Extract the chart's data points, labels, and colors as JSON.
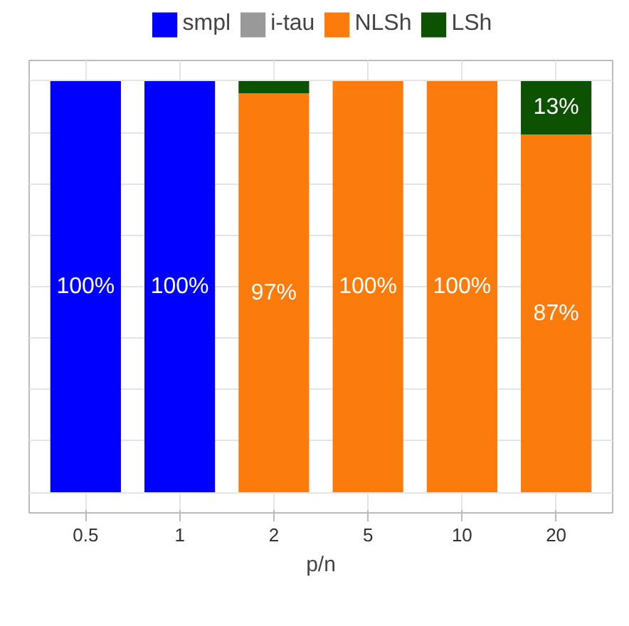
{
  "chart_data": {
    "type": "bar",
    "stacked": true,
    "xlabel": "p/n",
    "categories": [
      "0.5",
      "1",
      "2",
      "5",
      "10",
      "20"
    ],
    "series": [
      {
        "name": "smpl",
        "color": "#0000ff",
        "values": [
          100,
          100,
          0,
          0,
          0,
          0
        ],
        "value_labels": [
          "100%",
          "100%",
          null,
          null,
          null,
          null
        ]
      },
      {
        "name": "i-tau",
        "color": "#999999",
        "values": [
          0,
          0,
          0,
          0,
          0,
          0
        ],
        "value_labels": [
          null,
          null,
          null,
          null,
          null,
          null
        ]
      },
      {
        "name": "NLSh",
        "color": "#fb7b0c",
        "values": [
          0,
          0,
          97,
          100,
          100,
          87
        ],
        "value_labels": [
          null,
          null,
          "97%",
          "100%",
          "100%",
          "87%"
        ]
      },
      {
        "name": "LSh",
        "color": "#0c5200",
        "values": [
          0,
          0,
          3,
          0,
          0,
          13
        ],
        "value_labels": [
          null,
          null,
          null,
          null,
          null,
          "13%"
        ]
      }
    ],
    "ylim": [
      -5,
      105
    ],
    "yticks": [
      {
        "value": 0,
        "label": null
      },
      {
        "value": 12.5,
        "label": null
      },
      {
        "value": 25,
        "label": null
      },
      {
        "value": 37.5,
        "label": null
      },
      {
        "value": 50,
        "label": null
      },
      {
        "value": 62.5,
        "label": null
      },
      {
        "value": 75,
        "label": null
      },
      {
        "value": 87.5,
        "label": null
      },
      {
        "value": 100,
        "label": null
      }
    ],
    "tick_labels": "x",
    "grid": true,
    "legend": "top"
  }
}
